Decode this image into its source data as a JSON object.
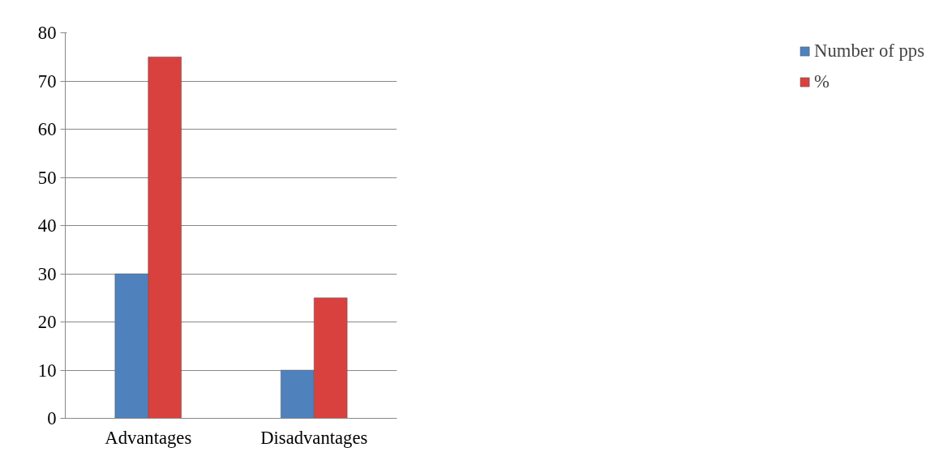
{
  "chart_data": {
    "type": "bar",
    "categories": [
      "Advantages",
      "Disadvantages"
    ],
    "series": [
      {
        "name": "Number of pps",
        "color": "#4f81bd",
        "values": [
          30,
          10
        ]
      },
      {
        "name": "%",
        "color": "#d9413f",
        "values": [
          75,
          25
        ]
      }
    ],
    "ylim": [
      0,
      80
    ],
    "yticks": [
      0,
      10,
      20,
      30,
      40,
      50,
      60,
      70,
      80
    ],
    "grid": "y",
    "legend": "right"
  }
}
